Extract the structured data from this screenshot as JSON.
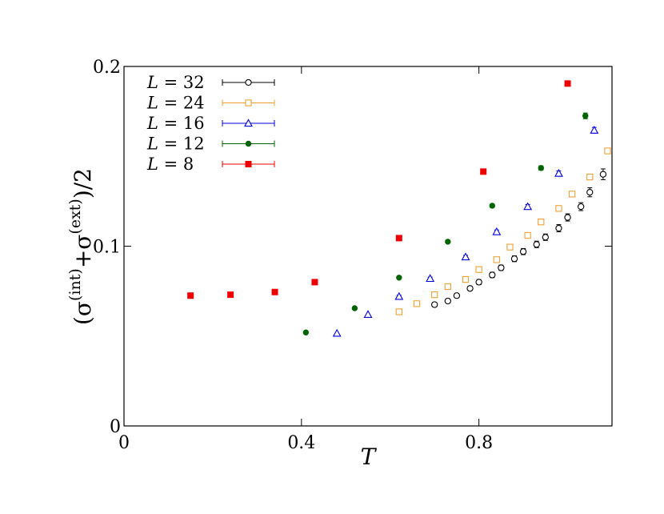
{
  "chart_data": {
    "type": "scatter",
    "xlabel": "T",
    "ylabel": {
      "open": "(σ",
      "sup1": "(int)",
      "mid": "+σ",
      "sup2": "(ext)",
      "close": ")/2"
    },
    "xlim": [
      0,
      1.1
    ],
    "ylim": [
      0,
      0.2
    ],
    "xticks": [
      "0",
      "0.4",
      "0.8"
    ],
    "xtick_values": [
      0,
      0.4,
      0.8
    ],
    "yticks": [
      "0",
      "0.1",
      "0.2"
    ],
    "ytick_values": [
      0,
      0.1,
      0.2
    ],
    "grid": false,
    "legend_position": "top-left",
    "series": [
      {
        "name": "L = 32",
        "var": "L",
        "value": "32",
        "color": "#000000",
        "marker": "open-circle",
        "points": [
          [
            0.7,
            0.0675,
            0.0012
          ],
          [
            0.73,
            0.0695,
            0.0012
          ],
          [
            0.75,
            0.0725,
            0.0012
          ],
          [
            0.78,
            0.0765,
            0.0012
          ],
          [
            0.8,
            0.08,
            0.0014
          ],
          [
            0.83,
            0.084,
            0.0015
          ],
          [
            0.85,
            0.088,
            0.0015
          ],
          [
            0.88,
            0.093,
            0.0016
          ],
          [
            0.9,
            0.097,
            0.0017
          ],
          [
            0.93,
            0.101,
            0.0018
          ],
          [
            0.95,
            0.105,
            0.0018
          ],
          [
            0.98,
            0.11,
            0.002
          ],
          [
            1.0,
            0.116,
            0.002
          ],
          [
            1.03,
            0.122,
            0.0022
          ],
          [
            1.05,
            0.13,
            0.0025
          ],
          [
            1.08,
            0.14,
            0.003
          ]
        ]
      },
      {
        "name": "L = 24",
        "var": "L",
        "value": "24",
        "color": "#f0a030",
        "marker": "open-square",
        "points": [
          [
            0.62,
            0.0635,
            0.0008
          ],
          [
            0.66,
            0.068,
            0.0008
          ],
          [
            0.7,
            0.073,
            0.0009
          ],
          [
            0.73,
            0.0775,
            0.0009
          ],
          [
            0.77,
            0.0815,
            0.0009
          ],
          [
            0.8,
            0.087,
            0.001
          ],
          [
            0.84,
            0.0925,
            0.001
          ],
          [
            0.87,
            0.0995,
            0.001
          ],
          [
            0.91,
            0.106,
            0.001
          ],
          [
            0.94,
            0.1135,
            0.001
          ],
          [
            0.98,
            0.121,
            0.001
          ],
          [
            1.01,
            0.129,
            0.001
          ],
          [
            1.05,
            0.1385,
            0.001
          ],
          [
            1.09,
            0.153,
            0.0012
          ]
        ]
      },
      {
        "name": "L = 16",
        "var": "L",
        "value": "16",
        "color": "#0000dd",
        "marker": "open-triangle",
        "points": [
          [
            0.48,
            0.0515,
            0.0005
          ],
          [
            0.55,
            0.062,
            0.0006
          ],
          [
            0.62,
            0.072,
            0.0007
          ],
          [
            0.69,
            0.082,
            0.0008
          ],
          [
            0.77,
            0.094,
            0.0009
          ],
          [
            0.84,
            0.108,
            0.001
          ],
          [
            0.91,
            0.122,
            0.0012
          ],
          [
            0.98,
            0.1405,
            0.0014
          ],
          [
            1.06,
            0.1645,
            0.0016
          ]
        ]
      },
      {
        "name": "L = 12",
        "var": "L",
        "value": "12",
        "color": "#006400",
        "marker": "filled-circle",
        "points": [
          [
            0.41,
            0.052,
            0.0004
          ],
          [
            0.52,
            0.0655,
            0.0005
          ],
          [
            0.62,
            0.0825,
            0.0006
          ],
          [
            0.73,
            0.1025,
            0.0007
          ],
          [
            0.83,
            0.1225,
            0.0009
          ],
          [
            0.94,
            0.1435,
            0.0012
          ],
          [
            1.04,
            0.1725,
            0.0016
          ]
        ]
      },
      {
        "name": "L = 8",
        "var": "L",
        "value": "8",
        "color": "#ee0000",
        "marker": "filled-square",
        "points": [
          [
            0.15,
            0.0725,
            0.0003
          ],
          [
            0.24,
            0.073,
            0.0003
          ],
          [
            0.34,
            0.0745,
            0.0003
          ],
          [
            0.43,
            0.08,
            0.0004
          ],
          [
            0.62,
            0.1045,
            0.0005
          ],
          [
            0.81,
            0.1415,
            0.0008
          ],
          [
            1.0,
            0.1905,
            0.0014
          ]
        ]
      }
    ]
  }
}
